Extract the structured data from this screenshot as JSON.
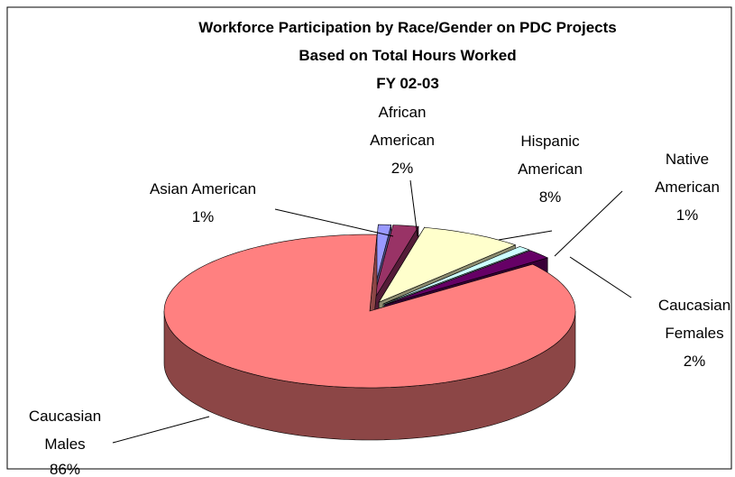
{
  "chart_data": {
    "type": "pie3d",
    "title": [
      "Workforce Participation by Race/Gender on PDC Projects",
      "Based on Total Hours Worked",
      "FY 02-03"
    ],
    "categories": [
      "Asian American",
      "African American",
      "Hispanic American",
      "Native American",
      "Caucasian Females",
      "Caucasian Males"
    ],
    "values": [
      1,
      2,
      8,
      1,
      2,
      86
    ],
    "value_labels": [
      "1%",
      "2%",
      "8%",
      "1%",
      "2%",
      "86%"
    ],
    "colors": [
      "#9999ff",
      "#993366",
      "#ffffcc",
      "#ccffff",
      "#660066",
      "#ff8080"
    ]
  }
}
